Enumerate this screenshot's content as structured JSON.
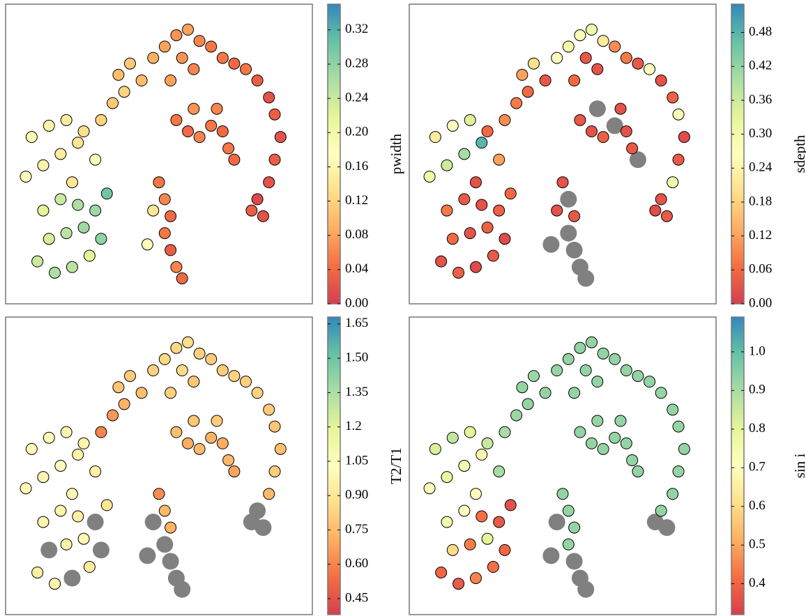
{
  "chart_data": [
    {
      "type": "scatter",
      "colorbar_label": "pwidth",
      "x": [
        8,
        14,
        20,
        26,
        12,
        18,
        24,
        30,
        10,
        16,
        22,
        28,
        32,
        4,
        10,
        16,
        22,
        6,
        12,
        18,
        24,
        28,
        20,
        30,
        34,
        38,
        36,
        40,
        44,
        48,
        52,
        56,
        60,
        64,
        68,
        58,
        62,
        54,
        72,
        76,
        80,
        84,
        88,
        90,
        92,
        90,
        88,
        84,
        86,
        82,
        56,
        60,
        64,
        68,
        72,
        74,
        76,
        70,
        62,
        50,
        52,
        54,
        52,
        54,
        56,
        58,
        48,
        46
      ],
      "y": [
        12,
        8,
        10,
        14,
        20,
        22,
        24,
        20,
        30,
        34,
        32,
        30,
        36,
        42,
        46,
        50,
        54,
        56,
        60,
        62,
        58,
        48,
        40,
        62,
        68,
        72,
        78,
        82,
        76,
        84,
        88,
        92,
        94,
        90,
        88,
        84,
        80,
        76,
        84,
        82,
        80,
        76,
        70,
        64,
        56,
        48,
        40,
        34,
        28,
        30,
        62,
        58,
        56,
        60,
        58,
        52,
        48,
        66,
        66,
        40,
        34,
        28,
        22,
        16,
        10,
        6,
        30,
        18
      ],
      "values": [
        0.24,
        0.26,
        0.25,
        0.22,
        0.23,
        0.25,
        0.27,
        0.28,
        0.22,
        0.24,
        0.26,
        0.27,
        0.3,
        0.18,
        0.16,
        0.15,
        0.14,
        0.19,
        0.16,
        0.15,
        0.13,
        0.17,
        0.14,
        0.12,
        0.11,
        0.12,
        0.1,
        0.11,
        0.1,
        0.09,
        0.08,
        0.07,
        0.08,
        0.06,
        0.05,
        0.07,
        0.06,
        0.08,
        0.05,
        0.04,
        0.05,
        0.03,
        0.02,
        0.03,
        0.02,
        0.03,
        0.02,
        0.01,
        0.02,
        0.03,
        0.05,
        0.04,
        0.06,
        0.05,
        0.04,
        0.05,
        0.04,
        0.06,
        0.07,
        0.05,
        0.06,
        0.04,
        0.05,
        0.03,
        0.06,
        0.04,
        0.14,
        0.18
      ],
      "xlim": [
        -3,
        103
      ],
      "ylim": [
        -3,
        103
      ],
      "clim": [
        0,
        0.35
      ],
      "cticks": [
        {
          "value": 0,
          "label": "0.00"
        },
        0.04,
        0.08,
        0.12,
        0.16,
        {
          "value": 0.2,
          "label": "0.20"
        },
        0.24,
        0.28,
        0.32
      ],
      "colormap": [
        "#d53e4f",
        "#f46d43",
        "#fdae61",
        "#fee08b",
        "#ffffbf",
        "#e6f598",
        "#abdda4",
        "#66c2a5",
        "#3288bd"
      ],
      "nan_color": "#808080"
    },
    {
      "type": "scatter",
      "colorbar_label": "sdepth",
      "x": [
        8,
        14,
        20,
        26,
        12,
        18,
        24,
        30,
        10,
        16,
        22,
        28,
        32,
        4,
        10,
        16,
        22,
        6,
        12,
        18,
        24,
        28,
        20,
        30,
        34,
        38,
        36,
        40,
        44,
        48,
        52,
        56,
        60,
        64,
        68,
        58,
        62,
        54,
        72,
        76,
        80,
        84,
        88,
        90,
        92,
        90,
        88,
        84,
        86,
        82,
        56,
        60,
        64,
        68,
        72,
        74,
        76,
        70,
        62,
        50,
        52,
        54,
        52,
        54,
        56,
        58,
        48,
        46
      ],
      "y": [
        12,
        8,
        10,
        14,
        20,
        22,
        24,
        20,
        30,
        34,
        32,
        30,
        36,
        42,
        46,
        50,
        54,
        56,
        60,
        62,
        58,
        48,
        40,
        62,
        68,
        72,
        78,
        82,
        76,
        84,
        88,
        92,
        94,
        90,
        88,
        84,
        80,
        76,
        84,
        82,
        80,
        76,
        70,
        64,
        56,
        48,
        40,
        34,
        28,
        30,
        62,
        58,
        56,
        60,
        58,
        52,
        48,
        66,
        66,
        40,
        34,
        28,
        22,
        16,
        10,
        6,
        30,
        18
      ],
      "values": [
        0.03,
        0.05,
        0.02,
        0.04,
        0.06,
        0.03,
        0.05,
        0.02,
        0.08,
        0.04,
        0.03,
        0.05,
        0.06,
        0.3,
        0.36,
        0.4,
        0.48,
        0.22,
        0.26,
        0.34,
        0.06,
        0.12,
        0.03,
        0.1,
        0.08,
        0.06,
        0.12,
        0.2,
        0.04,
        0.26,
        0.3,
        0.28,
        0.3,
        0.22,
        0.1,
        0.04,
        0.03,
        0.06,
        0.08,
        0.04,
        0.26,
        0.03,
        0.05,
        0.28,
        0.02,
        0.04,
        0.3,
        0.03,
        0.04,
        0.02,
        0.04,
        0.03,
        0.05,
        null,
        0.03,
        0.04,
        null,
        0.03,
        null,
        0.03,
        null,
        0.04,
        null,
        null,
        null,
        null,
        0.03,
        null
      ],
      "xlim": [
        -3,
        103
      ],
      "ylim": [
        -3,
        103
      ],
      "clim": [
        0,
        0.53
      ],
      "cticks": [
        {
          "value": 0,
          "label": "0.00"
        },
        0.06,
        0.12,
        0.18,
        0.24,
        {
          "value": 0.3,
          "label": "0.30"
        },
        0.36,
        0.42,
        0.48
      ],
      "colormap": [
        "#d53e4f",
        "#f46d43",
        "#fdae61",
        "#fee08b",
        "#ffffbf",
        "#e6f598",
        "#abdda4",
        "#66c2a5",
        "#3288bd"
      ],
      "nan_color": "#808080"
    },
    {
      "type": "scatter",
      "colorbar_label": "T2/T1",
      "x": [
        8,
        14,
        20,
        26,
        12,
        18,
        24,
        30,
        10,
        16,
        22,
        28,
        32,
        4,
        10,
        16,
        22,
        6,
        12,
        18,
        24,
        28,
        20,
        30,
        34,
        38,
        36,
        40,
        44,
        48,
        52,
        56,
        60,
        64,
        68,
        58,
        62,
        54,
        72,
        76,
        80,
        84,
        88,
        90,
        92,
        90,
        88,
        84,
        86,
        82,
        56,
        60,
        64,
        68,
        72,
        74,
        76,
        70,
        62,
        50,
        52,
        54,
        52,
        54,
        56,
        58,
        48,
        46
      ],
      "y": [
        12,
        8,
        10,
        14,
        20,
        22,
        24,
        20,
        30,
        34,
        32,
        30,
        36,
        42,
        46,
        50,
        54,
        56,
        60,
        62,
        58,
        48,
        40,
        62,
        68,
        72,
        78,
        82,
        76,
        84,
        88,
        92,
        94,
        90,
        88,
        84,
        80,
        76,
        84,
        82,
        80,
        76,
        70,
        64,
        56,
        48,
        40,
        34,
        28,
        30,
        62,
        58,
        56,
        60,
        58,
        52,
        48,
        66,
        66,
        40,
        34,
        28,
        22,
        16,
        10,
        6,
        30,
        18
      ],
      "values": [
        0.95,
        0.98,
        null,
        0.92,
        null,
        0.96,
        1.0,
        null,
        0.98,
        0.97,
        0.95,
        null,
        0.9,
        1.0,
        0.98,
        1.02,
        0.96,
        1.0,
        1.05,
        0.98,
        0.97,
        0.95,
        0.99,
        0.6,
        0.65,
        0.72,
        0.78,
        0.8,
        0.76,
        0.82,
        0.84,
        0.84,
        0.86,
        0.82,
        0.8,
        0.85,
        0.78,
        0.82,
        0.8,
        0.83,
        0.82,
        0.82,
        0.8,
        0.78,
        0.76,
        0.8,
        0.74,
        null,
        null,
        null,
        0.76,
        0.7,
        0.74,
        0.72,
        0.7,
        0.74,
        0.68,
        0.8,
        0.78,
        0.62,
        0.74,
        0.72,
        null,
        null,
        null,
        null,
        null,
        null
      ],
      "xlim": [
        -3,
        103
      ],
      "ylim": [
        -3,
        103
      ],
      "clim": [
        0.38,
        1.68
      ],
      "cticks": [
        0.45,
        {
          "value": 0.6,
          "label": "0.60"
        },
        0.75,
        {
          "value": 0.9,
          "label": "0.90"
        },
        1.05,
        1.2,
        1.35,
        {
          "value": 1.5,
          "label": "1.50"
        },
        1.65
      ],
      "colormap": [
        "#d53e4f",
        "#f46d43",
        "#fdae61",
        "#fee08b",
        "#ffffbf",
        "#e6f598",
        "#abdda4",
        "#66c2a5",
        "#3288bd"
      ],
      "nan_color": "#808080"
    },
    {
      "type": "scatter",
      "colorbar_label": "sin i",
      "x": [
        8,
        14,
        20,
        26,
        12,
        18,
        24,
        30,
        10,
        16,
        22,
        28,
        32,
        4,
        10,
        16,
        22,
        6,
        12,
        18,
        24,
        28,
        20,
        30,
        34,
        38,
        36,
        40,
        44,
        48,
        52,
        56,
        60,
        64,
        68,
        58,
        62,
        54,
        72,
        76,
        80,
        84,
        88,
        90,
        92,
        90,
        88,
        84,
        86,
        82,
        56,
        60,
        64,
        68,
        72,
        74,
        76,
        70,
        62,
        50,
        52,
        54,
        52,
        54,
        56,
        58,
        48,
        46
      ],
      "y": [
        12,
        8,
        10,
        14,
        20,
        22,
        24,
        20,
        30,
        34,
        32,
        30,
        36,
        42,
        46,
        50,
        54,
        56,
        60,
        62,
        58,
        48,
        40,
        62,
        68,
        72,
        78,
        82,
        76,
        84,
        88,
        92,
        94,
        90,
        88,
        84,
        80,
        76,
        84,
        82,
        80,
        76,
        70,
        64,
        56,
        48,
        40,
        34,
        28,
        30,
        62,
        58,
        56,
        60,
        58,
        52,
        48,
        66,
        66,
        40,
        34,
        28,
        22,
        16,
        10,
        6,
        30,
        18
      ],
      "values": [
        0.4,
        0.38,
        0.45,
        0.42,
        0.6,
        0.44,
        0.8,
        0.4,
        0.75,
        0.7,
        0.42,
        0.38,
        0.36,
        0.72,
        0.78,
        0.74,
        0.68,
        0.82,
        0.86,
        0.8,
        0.85,
        0.9,
        0.7,
        0.9,
        0.92,
        0.93,
        0.93,
        0.92,
        0.93,
        0.93,
        0.93,
        0.93,
        0.93,
        0.93,
        0.93,
        0.93,
        0.93,
        0.93,
        0.93,
        0.93,
        0.93,
        0.93,
        0.93,
        0.93,
        0.93,
        0.93,
        0.93,
        0.93,
        null,
        null,
        0.93,
        0.93,
        0.93,
        0.93,
        0.93,
        0.93,
        0.93,
        0.93,
        0.93,
        0.93,
        0.93,
        0.93,
        0.93,
        null,
        null,
        null,
        null,
        null
      ],
      "xlim": [
        -3,
        103
      ],
      "ylim": [
        -3,
        103
      ],
      "clim": [
        0.32,
        1.09
      ],
      "cticks": [
        0.4,
        0.5,
        0.6,
        0.7,
        0.8,
        0.9,
        {
          "value": 1,
          "label": "1.0"
        }
      ],
      "colormap": [
        "#d53e4f",
        "#f46d43",
        "#fdae61",
        "#fee08b",
        "#ffffbf",
        "#e6f598",
        "#abdda4",
        "#66c2a5",
        "#3288bd"
      ],
      "nan_color": "#808080"
    }
  ]
}
